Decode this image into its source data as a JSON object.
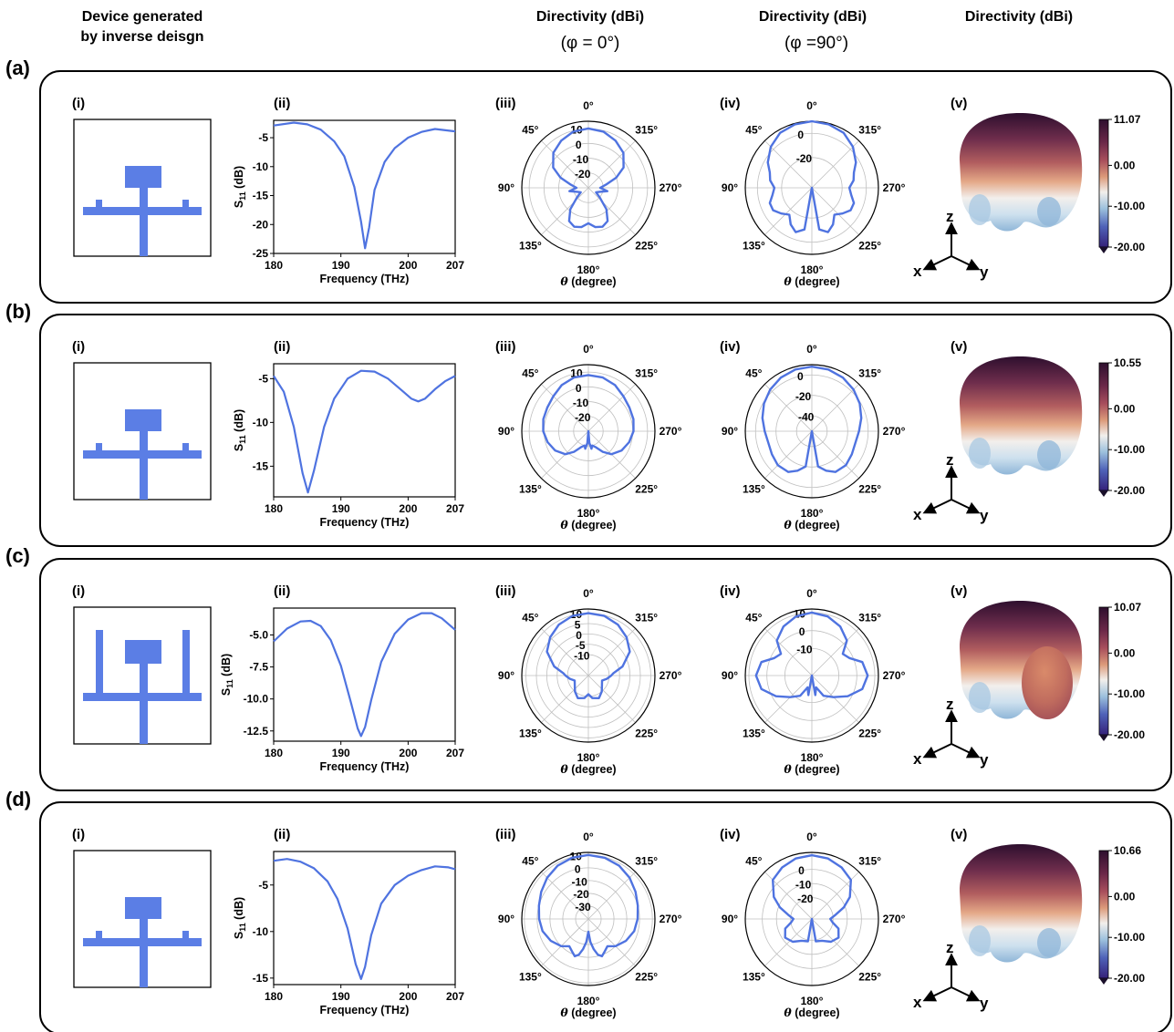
{
  "headers": {
    "device": [
      "Device generated",
      "by inverse deisgn"
    ],
    "col3": "Directivity (dBi)",
    "col3_sub": "(φ = 0°)",
    "col4": "Directivity (dBi)",
    "col4_sub": "(φ =90°)",
    "col5": "Directivity (dBi)"
  },
  "panel_labels": [
    "(i)",
    "(ii)",
    "(iii)",
    "(iv)",
    "(v)"
  ],
  "polar_angle_labels": [
    "0°",
    "315°",
    "270°",
    "225°",
    "180°",
    "135°",
    "90°",
    "45°"
  ],
  "polar_xlabel": "θ (degree)",
  "s11_ylabel": "S11 (dB)",
  "s11_xlabel": "Frequency (THz)",
  "axes3d_labels": [
    "x",
    "y",
    "z"
  ],
  "colors": {
    "curve": "#4f73e0",
    "device": "#5b7ee5",
    "cmap_top": "#2e0f2e",
    "cmap_high": "#8a3a55",
    "cmap_mid_high": "#d99070",
    "cmap_zero": "#f2efec",
    "cmap_low": "#86b2d6",
    "cmap_bottom": "#35217a"
  },
  "chart_data": [
    {
      "row_label": "(a)",
      "device_variant": "short_stubs",
      "s11": {
        "type": "line",
        "xlabel": "Frequency (THz)",
        "ylabel": "S11 (dB)",
        "xlim": [
          180,
          207
        ],
        "ylim": [
          -25,
          -2
        ],
        "xticks": [
          180,
          190,
          200,
          207
        ],
        "yticks": [
          "-5",
          "-10",
          "-15",
          "-20",
          "-25"
        ],
        "ytick_values": [
          -5,
          -10,
          -15,
          -20,
          -25
        ],
        "x": [
          180,
          183,
          185,
          187,
          189,
          190.5,
          192,
          193,
          193.6,
          194.2,
          195,
          196.5,
          198,
          200,
          202,
          204,
          207
        ],
        "y": [
          -2.9,
          -2.4,
          -2.7,
          -3.6,
          -5.6,
          -8.2,
          -13.5,
          -19.5,
          -24.1,
          -20.5,
          -14.0,
          -9.2,
          -6.8,
          -5.0,
          -4.0,
          -3.5,
          -3.9
        ]
      },
      "phi0": {
        "type": "polar",
        "rings": [
          "10",
          "0",
          "-10",
          "-20"
        ],
        "ring_values": [
          10,
          0,
          -10,
          -20
        ],
        "rmin": -30,
        "rmax": 15,
        "theta": [
          0,
          15,
          30,
          45,
          60,
          70,
          80,
          90,
          100,
          110,
          120,
          130,
          140,
          150,
          160,
          170,
          180
        ],
        "d": [
          10.1,
          9.3,
          6.8,
          3.5,
          -2.5,
          -10,
          -18,
          -22,
          -17,
          -22,
          -24,
          -20,
          -11,
          -4,
          -2,
          -3,
          -6
        ]
      },
      "phi90": {
        "type": "polar",
        "rings": [
          "0",
          "-20"
        ],
        "ring_values": [
          0,
          -20
        ],
        "rmin": -45,
        "rmax": 10,
        "theta": [
          0,
          15,
          30,
          45,
          60,
          70,
          80,
          90,
          100,
          110,
          120,
          130,
          140,
          150,
          160,
          170,
          180
        ],
        "d": [
          10,
          9.2,
          7.5,
          3,
          -3,
          -8,
          -10,
          -14,
          -12,
          -8,
          -8,
          -12,
          -16,
          -10,
          -6,
          -10,
          -45
        ]
      },
      "colorbar": {
        "max": "11.07",
        "ticks": [
          "11.07",
          "0.00",
          "-10.00",
          "-20.00"
        ]
      }
    },
    {
      "row_label": "(b)",
      "device_variant": "short_stubs",
      "s11": {
        "type": "line",
        "xlabel": "Frequency (THz)",
        "ylabel": "S11 (dB)",
        "xlim": [
          180,
          207
        ],
        "ylim": [
          -18.5,
          -3.3
        ],
        "xticks": [
          180,
          190,
          200,
          207
        ],
        "yticks": [
          "-5",
          "-10",
          "-15"
        ],
        "ytick_values": [
          -5,
          -10,
          -15
        ],
        "x": [
          180,
          181.5,
          183,
          184.3,
          185.1,
          186,
          187.5,
          189,
          191,
          193,
          195,
          197,
          199,
          200.5,
          201.5,
          202.5,
          204,
          205.5,
          207
        ],
        "y": [
          -4.7,
          -6.5,
          -10.5,
          -15.8,
          -18.0,
          -15.5,
          -10.5,
          -7.3,
          -5.0,
          -4.1,
          -4.2,
          -5.0,
          -6.3,
          -7.3,
          -7.6,
          -7.3,
          -6.2,
          -5.3,
          -4.7
        ]
      },
      "phi0": {
        "type": "polar",
        "rings": [
          "10",
          "0",
          "-10",
          "-20"
        ],
        "ring_values": [
          10,
          0,
          -10,
          -20
        ],
        "rmin": -30,
        "rmax": 15,
        "theta": [
          0,
          15,
          30,
          45,
          60,
          75,
          90,
          105,
          120,
          135,
          145,
          155,
          165,
          170,
          175,
          180
        ],
        "d": [
          8,
          7.6,
          6,
          3.5,
          2,
          1.5,
          0.5,
          -1.5,
          -4,
          -8,
          -13,
          -18,
          -20,
          -18,
          -22,
          -30
        ]
      },
      "phi90": {
        "type": "polar",
        "rings": [
          "0",
          "-20",
          "-40"
        ],
        "ring_values": [
          0,
          -20,
          -40
        ],
        "rmin": -55,
        "rmax": 10,
        "theta": [
          0,
          15,
          30,
          45,
          60,
          75,
          90,
          105,
          120,
          135,
          150,
          160,
          170,
          180
        ],
        "d": [
          8,
          7.4,
          5.5,
          2.5,
          -1,
          -5,
          -9,
          -11,
          -10,
          -8,
          -9,
          -14,
          -20,
          -55
        ]
      },
      "colorbar": {
        "max": "10.55",
        "ticks": [
          "10.55",
          "0.00",
          "-10.00",
          "-20.00"
        ]
      }
    },
    {
      "row_label": "(c)",
      "device_variant": "tall_stubs",
      "s11": {
        "type": "line",
        "xlabel": "Frequency (THz)",
        "ylabel": "S11 (dB)",
        "xlim": [
          180,
          207
        ],
        "ylim": [
          -13.3,
          -2.9
        ],
        "xticks": [
          180,
          190,
          200,
          207
        ],
        "yticks": [
          "-5.0",
          "-7.5",
          "-10.0",
          "-12.5"
        ],
        "ytick_values": [
          -5,
          -7.5,
          -10,
          -12.5
        ],
        "x": [
          180,
          182,
          184,
          185.5,
          187,
          188.5,
          190,
          191.5,
          192.5,
          193,
          193.6,
          194.5,
          196,
          198,
          200,
          202,
          203.5,
          205,
          207
        ],
        "y": [
          -5.5,
          -4.5,
          -3.95,
          -3.9,
          -4.3,
          -5.4,
          -7.4,
          -10.3,
          -12.3,
          -12.9,
          -12.2,
          -10.1,
          -7.1,
          -4.9,
          -3.8,
          -3.3,
          -3.3,
          -3.7,
          -4.6
        ]
      },
      "phi0": {
        "type": "polar",
        "rings": [
          "10",
          "5",
          "0",
          "-5",
          "-10"
        ],
        "ring_values": [
          10,
          5,
          0,
          -5,
          -10
        ],
        "rmin": -20,
        "rmax": 12,
        "theta": [
          0,
          15,
          30,
          45,
          60,
          75,
          85,
          90,
          100,
          110,
          125,
          140,
          155,
          170,
          180
        ],
        "d": [
          10,
          9.7,
          8.3,
          6,
          3,
          -3,
          -8,
          -9,
          -11,
          -13,
          -12,
          -10,
          -8,
          -9,
          -11
        ]
      },
      "phi90": {
        "type": "polar",
        "rings": [
          "10",
          "0",
          "-10"
        ],
        "ring_values": [
          10,
          0,
          -10
        ],
        "rmin": -25,
        "rmax": 12,
        "theta": [
          0,
          15,
          30,
          45,
          55,
          65,
          75,
          90,
          105,
          120,
          135,
          150,
          160,
          170,
          180
        ],
        "d": [
          10,
          9,
          6.5,
          2.5,
          -4,
          -2,
          4,
          6,
          4,
          -2,
          -8,
          -12,
          -18,
          -14,
          -25
        ]
      },
      "colorbar": {
        "max": "10.07",
        "ticks": [
          "10.07",
          "0.00",
          "-10.00",
          "-20.00"
        ]
      }
    },
    {
      "row_label": "(d)",
      "device_variant": "short_stubs",
      "s11": {
        "type": "line",
        "xlabel": "Frequency (THz)",
        "ylabel": "S11 (dB)",
        "xlim": [
          180,
          207
        ],
        "ylim": [
          -15.7,
          -1.4
        ],
        "xticks": [
          180,
          190,
          200,
          207
        ],
        "yticks": [
          "-5",
          "-10",
          "-15"
        ],
        "ytick_values": [
          -5,
          -10,
          -15
        ],
        "x": [
          180,
          182,
          184,
          186,
          188,
          189.5,
          191,
          192.2,
          193,
          193.6,
          194.5,
          196,
          198,
          200,
          202,
          204,
          206,
          207
        ],
        "y": [
          -2.4,
          -2.2,
          -2.5,
          -3.2,
          -4.6,
          -6.5,
          -9.7,
          -13.5,
          -15.1,
          -13.8,
          -10.4,
          -7.0,
          -5.0,
          -4.0,
          -3.4,
          -3.0,
          -3.1,
          -3.3
        ]
      },
      "phi0": {
        "type": "polar",
        "rings": [
          "10",
          "0",
          "-10",
          "-20",
          "-30"
        ],
        "ring_values": [
          10,
          0,
          -10,
          -20,
          -30
        ],
        "rmin": -40,
        "rmax": 12,
        "theta": [
          0,
          15,
          30,
          45,
          60,
          75,
          90,
          105,
          120,
          135,
          145,
          155,
          160,
          165,
          170,
          175,
          180
        ],
        "d": [
          10,
          9.5,
          8,
          5.5,
          2.5,
          0,
          -1.5,
          -3,
          -6,
          -10,
          -14,
          -11,
          -9,
          -11,
          -16,
          -22,
          -30
        ]
      },
      "phi90": {
        "type": "polar",
        "rings": [
          "0",
          "-10",
          "-20"
        ],
        "ring_values": [
          0,
          -10,
          -20
        ],
        "rmin": -35,
        "rmax": 12,
        "theta": [
          0,
          15,
          30,
          45,
          60,
          70,
          80,
          90,
          100,
          110,
          125,
          140,
          155,
          170,
          180
        ],
        "d": [
          10,
          9.2,
          7,
          4,
          -4,
          -11,
          -18,
          -22,
          -20,
          -15,
          -12,
          -14,
          -18,
          -19,
          -35
        ]
      },
      "colorbar": {
        "max": "10.66",
        "ticks": [
          "10.66",
          "0.00",
          "-10.00",
          "-20.00"
        ]
      }
    }
  ]
}
